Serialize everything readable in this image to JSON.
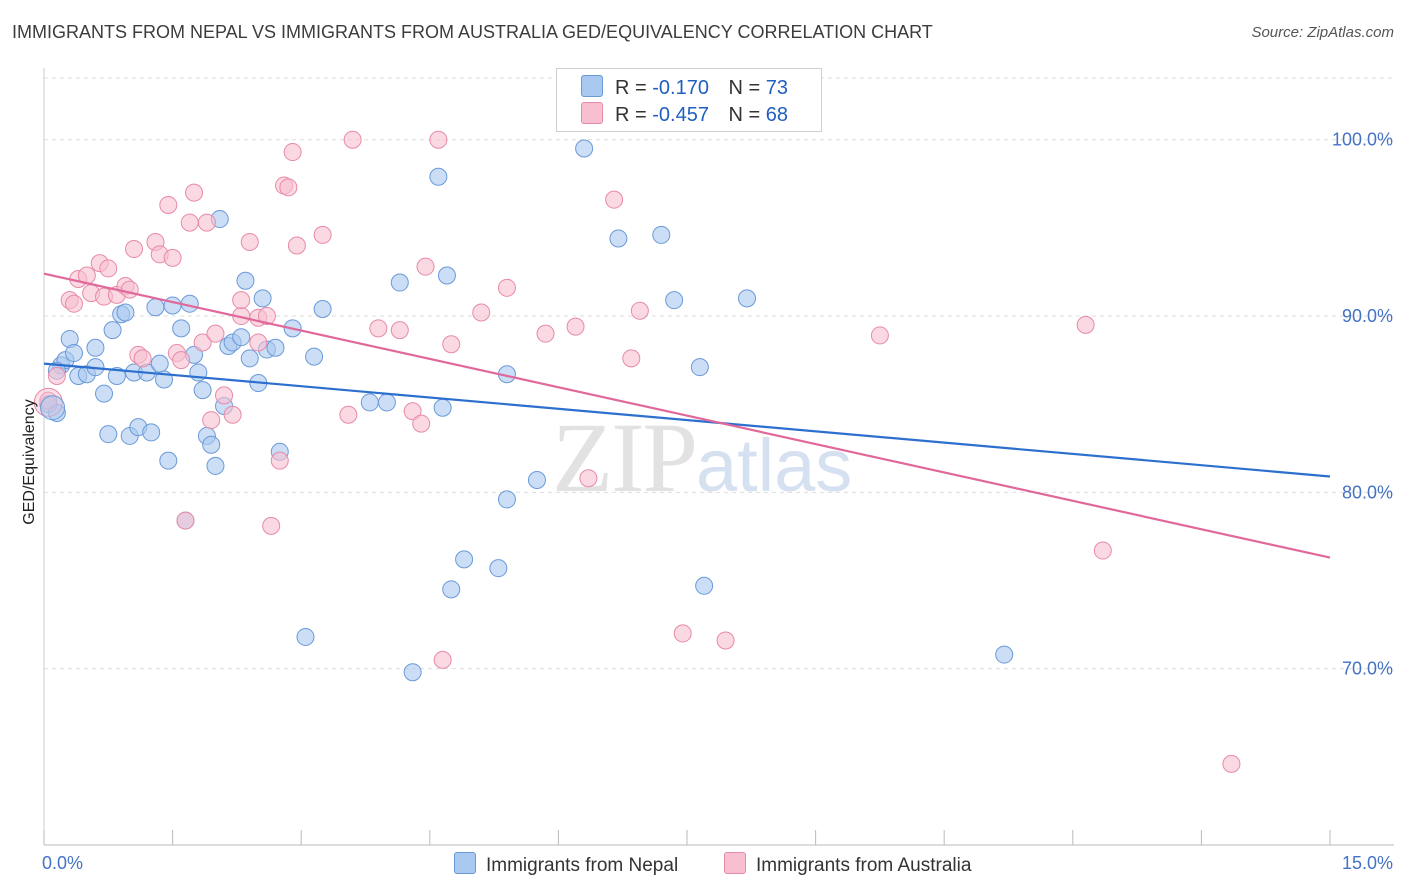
{
  "header": {
    "title": "IMMIGRANTS FROM NEPAL VS IMMIGRANTS FROM AUSTRALIA GED/EQUIVALENCY CORRELATION CHART",
    "source": "Source: ZipAtlas.com"
  },
  "watermark": {
    "zip": "ZIP",
    "atlas": "atlas"
  },
  "legend": {
    "nepal": {
      "r_label": "R =",
      "r_value": "-0.170",
      "n_label": "N =",
      "n_value": "73",
      "color": "#a9c8f0"
    },
    "australia": {
      "r_label": "R =",
      "r_value": "-0.457",
      "n_label": "N =",
      "n_value": "68",
      "color": "#f7bfd0"
    }
  },
  "bottom_legend": {
    "nepal": "Immigrants from Nepal",
    "australia": "Immigrants from Australia"
  },
  "colors": {
    "nepal_fill": "#a9c8f0",
    "nepal_stroke": "#6a9ad8",
    "nepal_line": "#2c6fce",
    "australia_fill": "#f7bfd0",
    "australia_stroke": "#e88aa8",
    "australia_line": "#e0689a",
    "grid": "#dddddd",
    "tick_text": "#4472c4"
  },
  "chart_data": {
    "type": "scatter",
    "title": "IMMIGRANTS FROM NEPAL VS IMMIGRANTS FROM AUSTRALIA GED/EQUIVALENCY CORRELATION CHART",
    "xlabel": "",
    "ylabel": "GED/Equivalency",
    "xlim": [
      0,
      15
    ],
    "ylim": [
      60.0,
      103.5
    ],
    "x_tick_labels": [
      "0.0%",
      "15.0%"
    ],
    "y_ticks": [
      70,
      80,
      90,
      100
    ],
    "y_tick_labels": [
      "70.0%",
      "80.0%",
      "90.0%",
      "100.0%"
    ],
    "series": [
      {
        "name": "Immigrants from Nepal",
        "R": -0.17,
        "N": 73,
        "trend": {
          "x": [
            0,
            15
          ],
          "y": [
            87.3,
            80.9
          ]
        },
        "points": [
          [
            0.05,
            85.0
          ],
          [
            0.15,
            84.5
          ],
          [
            0.2,
            87.2
          ],
          [
            0.25,
            87.5
          ],
          [
            0.3,
            88.7
          ],
          [
            0.35,
            87.9
          ],
          [
            0.4,
            86.6
          ],
          [
            0.5,
            86.7
          ],
          [
            0.6,
            88.2
          ],
          [
            0.6,
            87.1
          ],
          [
            0.7,
            85.6
          ],
          [
            0.75,
            83.3
          ],
          [
            0.8,
            89.2
          ],
          [
            0.85,
            86.6
          ],
          [
            0.9,
            90.1
          ],
          [
            0.95,
            90.2
          ],
          [
            1.0,
            83.2
          ],
          [
            1.05,
            86.8
          ],
          [
            1.1,
            83.7
          ],
          [
            1.2,
            86.8
          ],
          [
            1.25,
            83.4
          ],
          [
            1.3,
            90.5
          ],
          [
            1.35,
            87.3
          ],
          [
            1.4,
            86.4
          ],
          [
            1.45,
            81.8
          ],
          [
            1.5,
            90.6
          ],
          [
            1.6,
            89.3
          ],
          [
            1.65,
            78.4
          ],
          [
            1.7,
            90.7
          ],
          [
            1.75,
            87.8
          ],
          [
            1.8,
            86.8
          ],
          [
            1.85,
            85.8
          ],
          [
            1.9,
            83.2
          ],
          [
            1.95,
            82.7
          ],
          [
            2.0,
            81.5
          ],
          [
            2.05,
            95.5
          ],
          [
            2.1,
            84.9
          ],
          [
            2.15,
            88.3
          ],
          [
            2.2,
            88.5
          ],
          [
            2.3,
            88.8
          ],
          [
            2.35,
            92.0
          ],
          [
            2.4,
            87.6
          ],
          [
            2.5,
            86.2
          ],
          [
            2.55,
            91.0
          ],
          [
            2.6,
            88.1
          ],
          [
            2.7,
            88.2
          ],
          [
            2.75,
            82.3
          ],
          [
            2.9,
            89.3
          ],
          [
            3.05,
            71.8
          ],
          [
            3.15,
            87.7
          ],
          [
            3.25,
            90.4
          ],
          [
            3.8,
            85.1
          ],
          [
            4.0,
            85.1
          ],
          [
            4.15,
            91.9
          ],
          [
            4.3,
            69.8
          ],
          [
            4.6,
            97.9
          ],
          [
            4.65,
            84.8
          ],
          [
            4.7,
            92.3
          ],
          [
            4.75,
            74.5
          ],
          [
            4.9,
            76.2
          ],
          [
            5.3,
            75.7
          ],
          [
            5.4,
            79.6
          ],
          [
            5.4,
            86.7
          ],
          [
            5.75,
            80.7
          ],
          [
            6.3,
            99.5
          ],
          [
            6.7,
            94.4
          ],
          [
            7.2,
            94.6
          ],
          [
            7.35,
            90.9
          ],
          [
            7.65,
            87.1
          ],
          [
            7.7,
            74.7
          ],
          [
            8.2,
            91.0
          ],
          [
            11.2,
            70.8
          ],
          [
            0.15,
            86.9
          ]
        ]
      },
      {
        "name": "Immigrants from Australia",
        "R": -0.457,
        "N": 68,
        "trend": {
          "x": [
            0,
            15
          ],
          "y": [
            92.4,
            76.3
          ]
        },
        "points": [
          [
            0.05,
            85.2
          ],
          [
            0.15,
            86.6
          ],
          [
            0.3,
            90.9
          ],
          [
            0.35,
            90.7
          ],
          [
            0.4,
            92.1
          ],
          [
            0.5,
            92.3
          ],
          [
            0.55,
            91.3
          ],
          [
            0.65,
            93.0
          ],
          [
            0.7,
            91.1
          ],
          [
            0.75,
            92.7
          ],
          [
            0.85,
            91.2
          ],
          [
            0.95,
            91.7
          ],
          [
            1.0,
            91.5
          ],
          [
            1.05,
            93.8
          ],
          [
            1.1,
            87.8
          ],
          [
            1.15,
            87.6
          ],
          [
            1.3,
            94.2
          ],
          [
            1.35,
            93.5
          ],
          [
            1.45,
            96.3
          ],
          [
            1.5,
            93.3
          ],
          [
            1.55,
            87.9
          ],
          [
            1.6,
            87.5
          ],
          [
            1.65,
            78.4
          ],
          [
            1.7,
            95.3
          ],
          [
            1.75,
            97.0
          ],
          [
            1.85,
            88.5
          ],
          [
            1.9,
            95.3
          ],
          [
            1.95,
            84.1
          ],
          [
            2.0,
            89.0
          ],
          [
            2.1,
            85.5
          ],
          [
            2.2,
            84.4
          ],
          [
            2.3,
            90.0
          ],
          [
            2.3,
            90.9
          ],
          [
            2.4,
            94.2
          ],
          [
            2.5,
            89.9
          ],
          [
            2.5,
            88.5
          ],
          [
            2.6,
            90.0
          ],
          [
            2.65,
            78.1
          ],
          [
            2.75,
            81.8
          ],
          [
            2.8,
            97.4
          ],
          [
            2.85,
            97.3
          ],
          [
            2.9,
            99.3
          ],
          [
            2.95,
            94.0
          ],
          [
            3.25,
            94.6
          ],
          [
            3.55,
            84.4
          ],
          [
            3.6,
            100.0
          ],
          [
            3.9,
            89.3
          ],
          [
            4.15,
            89.2
          ],
          [
            4.3,
            84.6
          ],
          [
            4.45,
            92.8
          ],
          [
            4.4,
            83.9
          ],
          [
            4.6,
            100.0
          ],
          [
            4.65,
            70.5
          ],
          [
            4.75,
            88.4
          ],
          [
            5.1,
            90.2
          ],
          [
            5.4,
            91.6
          ],
          [
            5.85,
            89.0
          ],
          [
            6.2,
            89.4
          ],
          [
            6.35,
            80.8
          ],
          [
            6.65,
            96.6
          ],
          [
            6.85,
            87.6
          ],
          [
            6.95,
            90.3
          ],
          [
            7.45,
            72.0
          ],
          [
            7.95,
            71.6
          ],
          [
            9.75,
            88.9
          ],
          [
            12.15,
            89.5
          ],
          [
            12.35,
            76.7
          ],
          [
            13.85,
            64.6
          ]
        ]
      }
    ]
  }
}
